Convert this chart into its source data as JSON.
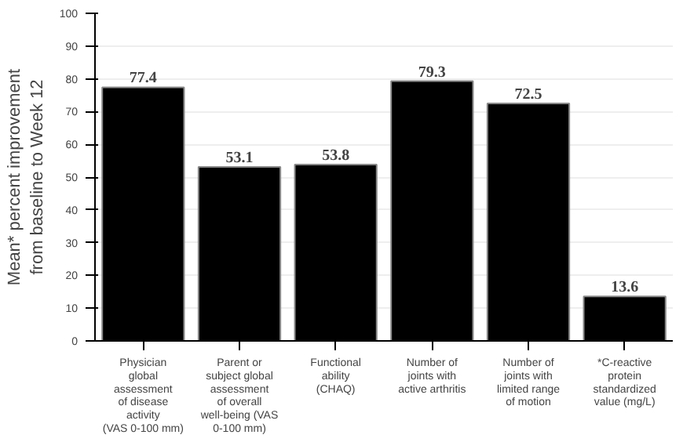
{
  "chart_data": {
    "type": "bar",
    "ylabel": "Mean* percent improvement\nfrom baseline to Week 12",
    "categories": [
      "Physician\nglobal\nassessment\nof disease\nactivity\n(VAS 0-100 mm)",
      "Parent or\nsubject global\nassessment\nof overall\nwell-being (VAS\n0-100 mm)",
      "Functional\nability\n(CHAQ)",
      "Number of\njoints with\nactive arthritis",
      "Number of\njoints with\nlimited range\nof motion",
      "*C-reactive\nprotein\nstandardized\nvalue (mg/L)"
    ],
    "values": [
      77.4,
      53.1,
      53.8,
      79.3,
      72.5,
      13.6
    ],
    "color": "#000000",
    "data_labels": true,
    "ylim": [
      0,
      100
    ],
    "yticks": [
      0,
      10,
      20,
      30,
      40,
      50,
      60,
      70,
      80,
      90,
      100
    ],
    "grid": "y"
  }
}
